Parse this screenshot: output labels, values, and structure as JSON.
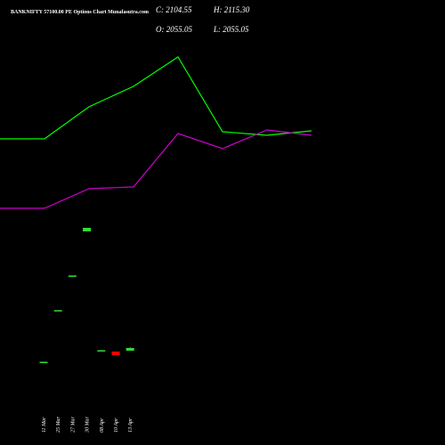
{
  "chart_data": {
    "type": "candlestick",
    "title": "BANKNIFTY 57100.00 PE Options Chart Munafasutra.com",
    "categories": [
      "11 Mar",
      "25 Mar",
      "27 Mar",
      "30 Mar",
      "08 Apr",
      "10 Apr",
      "13 Apr"
    ],
    "open": [
      1840,
      2768,
      3392,
      4200,
      2048,
      2040,
      2055.05
    ],
    "high": [
      1856,
      2784,
      3408,
      4264,
      2064,
      2040,
      2115.3
    ],
    "low": [
      1840,
      2768,
      3392,
      4200,
      2048,
      1976,
      2055.05
    ],
    "close": [
      1856,
      2784,
      3408,
      4264,
      2064,
      1976,
      2104.55
    ],
    "up_color": "#33dd33",
    "down_color": "#ff0000",
    "ylim": [
      1000,
      7720
    ],
    "ohlc_names": {
      "close": "C:",
      "high": "H:",
      "open": "O:",
      "low": "L:"
    },
    "ohlc_value_labels": {
      "close": "2104.55",
      "high": "2115.30",
      "open": "2055.05",
      "low": "2055.05"
    },
    "lines": {
      "x": [
        0,
        1,
        2,
        3,
        4,
        5,
        6,
        7
      ],
      "xlim": [
        0,
        10
      ],
      "y2lim": [
        0,
        500
      ],
      "series": [
        {
          "color": "#00ff00",
          "values": [
            344,
            344,
            380,
            403,
            436,
            352,
            348,
            353
          ]
        },
        {
          "color": "#cc00cc",
          "values": [
            266,
            266,
            288,
            290,
            350,
            333,
            354,
            348
          ]
        }
      ]
    }
  }
}
